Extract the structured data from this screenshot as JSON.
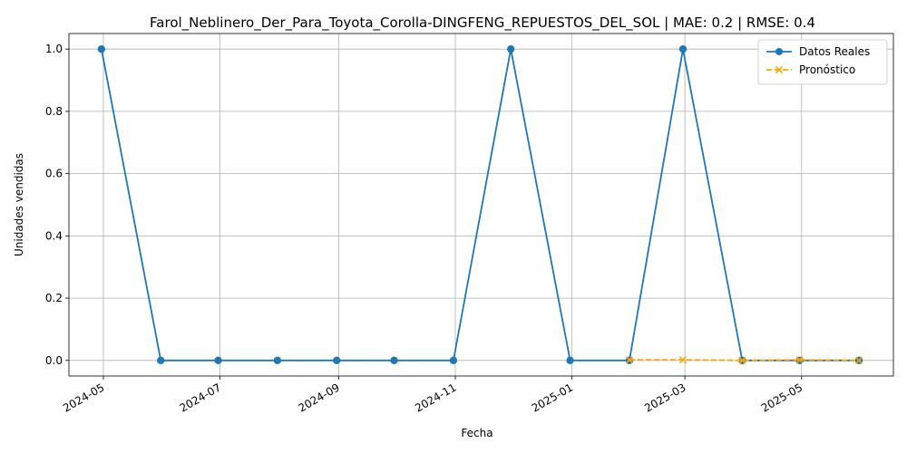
{
  "chart_data": {
    "type": "line",
    "title": "Farol_Neblinero_Der_Para_Toyota_Corolla-DINGFENG_REPUESTOS_DEL_SOL | MAE: 0.2 | RMSE: 0.4",
    "xlabel": "Fecha",
    "ylabel": "Unidades vendidas",
    "xlim": [
      "2024-04-13",
      "2025-06-18"
    ],
    "ylim": [
      -0.05,
      1.05
    ],
    "x_ticks": [
      "2024-05",
      "2024-07",
      "2024-09",
      "2024-11",
      "2025-01",
      "2025-03",
      "2025-05"
    ],
    "x_tick_dates": [
      "2024-05-01",
      "2024-07-01",
      "2024-09-01",
      "2024-11-01",
      "2025-01-01",
      "2025-03-01",
      "2025-05-01"
    ],
    "y_ticks": [
      "0.0",
      "0.2",
      "0.4",
      "0.6",
      "0.8",
      "1.0"
    ],
    "y_tick_values": [
      0,
      0.2,
      0.4,
      0.6,
      0.8,
      1.0
    ],
    "grid": true,
    "legend_position": "top-right",
    "series": [
      {
        "name": "Datos Reales",
        "color": "#1f77b4",
        "style": "solid",
        "marker": "circle",
        "x": [
          "2024-04-30",
          "2024-05-31",
          "2024-06-30",
          "2024-07-31",
          "2024-08-31",
          "2024-09-30",
          "2024-10-31",
          "2024-11-30",
          "2024-12-31",
          "2025-01-31",
          "2025-02-28",
          "2025-03-31",
          "2025-04-30",
          "2025-05-31"
        ],
        "values": [
          1,
          0,
          0,
          0,
          0,
          0,
          0,
          1,
          0,
          0,
          1,
          0,
          0,
          0
        ]
      },
      {
        "name": "Pronóstico",
        "color": "#ffa500",
        "style": "dashed",
        "marker": "x",
        "x": [
          "2025-01-31",
          "2025-02-28",
          "2025-03-31",
          "2025-04-30",
          "2025-05-31"
        ],
        "values": [
          0.002,
          0.002,
          0.0,
          0.002,
          0.0
        ]
      }
    ]
  }
}
